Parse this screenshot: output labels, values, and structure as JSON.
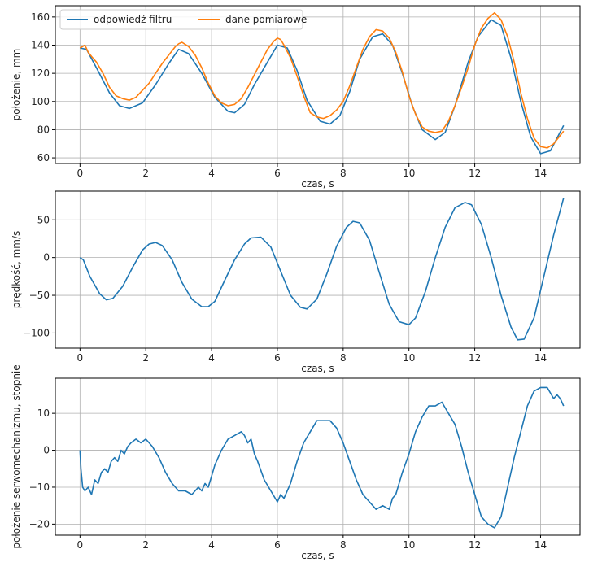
{
  "colors": {
    "filter": "#1f77b4",
    "measured": "#ff7f0e"
  },
  "chart_data": [
    {
      "type": "line",
      "xlabel": "czas, s",
      "ylabel": "położenie, mm",
      "xlim": [
        -0.75,
        15.2
      ],
      "ylim": [
        56,
        168
      ],
      "xticks": [
        0,
        2,
        4,
        6,
        8,
        10,
        12,
        14
      ],
      "yticks": [
        60,
        80,
        100,
        120,
        140,
        160
      ],
      "grid": true,
      "legend_position": "top-left",
      "series": [
        {
          "name": "odpowiedź filtru",
          "color_key": "filter",
          "x": [
            0,
            0.2,
            0.5,
            0.9,
            1.2,
            1.5,
            1.9,
            2.3,
            2.7,
            3.0,
            3.3,
            3.7,
            4.1,
            4.5,
            4.7,
            5.0,
            5.3,
            5.7,
            6.0,
            6.3,
            6.6,
            6.9,
            7.3,
            7.6,
            7.9,
            8.2,
            8.5,
            8.9,
            9.2,
            9.5,
            9.8,
            10.1,
            10.4,
            10.8,
            11.1,
            11.4,
            11.8,
            12.1,
            12.5,
            12.8,
            13.1,
            13.4,
            13.7,
            14.0,
            14.3,
            14.7
          ],
          "y": [
            138,
            137,
            124,
            106,
            97,
            95,
            99,
            112,
            127,
            137,
            134,
            120,
            103,
            93,
            92,
            98,
            112,
            128,
            140,
            138,
            122,
            101,
            86,
            84,
            90,
            107,
            130,
            146,
            148,
            140,
            120,
            97,
            80,
            73,
            78,
            97,
            128,
            146,
            158,
            154,
            131,
            100,
            75,
            63,
            65,
            83
          ]
        },
        {
          "name": "dane pomiarowe",
          "color_key": "measured",
          "x": [
            0,
            0.15,
            0.25,
            0.35,
            0.5,
            0.7,
            0.9,
            1.1,
            1.3,
            1.5,
            1.7,
            1.9,
            2.1,
            2.3,
            2.5,
            2.7,
            2.9,
            3.0,
            3.1,
            3.3,
            3.5,
            3.7,
            3.9,
            4.1,
            4.3,
            4.5,
            4.7,
            4.9,
            5.1,
            5.3,
            5.5,
            5.7,
            5.9,
            6.0,
            6.1,
            6.2,
            6.4,
            6.6,
            6.8,
            7.0,
            7.2,
            7.4,
            7.6,
            7.8,
            8.0,
            8.2,
            8.4,
            8.6,
            8.8,
            9.0,
            9.2,
            9.4,
            9.6,
            9.8,
            10.0,
            10.2,
            10.4,
            10.6,
            10.8,
            11.0,
            11.2,
            11.4,
            11.6,
            11.8,
            12.0,
            12.2,
            12.4,
            12.6,
            12.8,
            13.0,
            13.2,
            13.4,
            13.6,
            13.8,
            14.0,
            14.2,
            14.4,
            14.7
          ],
          "y": [
            138,
            140,
            135,
            132,
            128,
            120,
            110,
            104,
            102,
            101,
            103,
            108,
            113,
            120,
            127,
            133,
            139,
            141,
            142,
            139,
            133,
            124,
            113,
            104,
            99,
            97,
            98,
            102,
            110,
            119,
            128,
            137,
            143,
            145,
            144,
            140,
            131,
            118,
            104,
            92,
            89,
            88,
            90,
            94,
            100,
            111,
            124,
            137,
            146,
            151,
            150,
            145,
            135,
            121,
            104,
            91,
            82,
            79,
            78,
            79,
            86,
            97,
            110,
            124,
            140,
            152,
            159,
            163,
            158,
            146,
            128,
            106,
            88,
            74,
            68,
            67,
            70,
            79
          ]
        }
      ]
    },
    {
      "type": "line",
      "xlabel": "czas, s",
      "ylabel": "prędkość, mm/s",
      "xlim": [
        -0.75,
        15.2
      ],
      "ylim": [
        -120,
        88
      ],
      "xticks": [
        0,
        2,
        4,
        6,
        8,
        10,
        12,
        14
      ],
      "yticks": [
        -100,
        -50,
        0,
        50
      ],
      "grid": true,
      "series": [
        {
          "name": "prędkość",
          "color_key": "filter",
          "x": [
            0,
            0.1,
            0.3,
            0.6,
            0.8,
            1.0,
            1.3,
            1.6,
            1.9,
            2.1,
            2.3,
            2.5,
            2.8,
            3.1,
            3.4,
            3.7,
            3.9,
            4.1,
            4.4,
            4.7,
            5.0,
            5.2,
            5.5,
            5.8,
            6.1,
            6.4,
            6.7,
            6.9,
            7.2,
            7.5,
            7.8,
            8.1,
            8.3,
            8.5,
            8.8,
            9.1,
            9.4,
            9.7,
            10.0,
            10.2,
            10.5,
            10.8,
            11.1,
            11.4,
            11.7,
            11.9,
            12.2,
            12.5,
            12.8,
            13.1,
            13.3,
            13.5,
            13.8,
            14.1,
            14.4,
            14.7
          ],
          "y": [
            0,
            -3,
            -25,
            -48,
            -56,
            -54,
            -38,
            -13,
            10,
            18,
            20,
            16,
            -3,
            -33,
            -55,
            -65,
            -65,
            -58,
            -30,
            -3,
            18,
            26,
            27,
            14,
            -18,
            -50,
            -66,
            -68,
            -55,
            -22,
            15,
            40,
            48,
            46,
            23,
            -20,
            -62,
            -85,
            -89,
            -80,
            -45,
            0,
            40,
            66,
            73,
            70,
            44,
            0,
            -50,
            -92,
            -109,
            -108,
            -80,
            -25,
            30,
            79
          ]
        }
      ]
    },
    {
      "type": "line",
      "xlabel": "czas, s",
      "ylabel": "położenie serwomechanizmu, stopnie",
      "xlim": [
        -0.75,
        15.2
      ],
      "ylim": [
        -23,
        19.5
      ],
      "xticks": [
        0,
        2,
        4,
        6,
        8,
        10,
        12,
        14
      ],
      "yticks": [
        -20,
        -10,
        0,
        10
      ],
      "grid": true,
      "series": [
        {
          "name": "położenie serwomechanizmu",
          "color_key": "filter",
          "x": [
            0,
            0.03,
            0.08,
            0.15,
            0.25,
            0.35,
            0.45,
            0.55,
            0.65,
            0.75,
            0.85,
            0.95,
            1.05,
            1.15,
            1.25,
            1.35,
            1.45,
            1.55,
            1.7,
            1.85,
            2.0,
            2.2,
            2.4,
            2.6,
            2.8,
            3.0,
            3.2,
            3.4,
            3.6,
            3.7,
            3.8,
            3.9,
            4.0,
            4.1,
            4.3,
            4.5,
            4.7,
            4.9,
            5.0,
            5.1,
            5.2,
            5.3,
            5.4,
            5.6,
            5.8,
            6.0,
            6.1,
            6.2,
            6.4,
            6.6,
            6.8,
            7.0,
            7.2,
            7.4,
            7.6,
            7.8,
            8.0,
            8.2,
            8.4,
            8.6,
            8.8,
            9.0,
            9.2,
            9.4,
            9.5,
            9.6,
            9.8,
            10.0,
            10.2,
            10.4,
            10.6,
            10.8,
            11.0,
            11.2,
            11.4,
            11.6,
            11.8,
            12.0,
            12.2,
            12.4,
            12.6,
            12.8,
            13.0,
            13.2,
            13.4,
            13.6,
            13.8,
            14.0,
            14.2,
            14.4,
            14.5,
            14.6,
            14.7
          ],
          "y": [
            0,
            -5,
            -10,
            -11,
            -10,
            -12,
            -8,
            -9,
            -6,
            -5,
            -6,
            -3,
            -2,
            -3,
            0,
            -1,
            1,
            2,
            3,
            2,
            3,
            1,
            -2,
            -6,
            -9,
            -11,
            -11,
            -12,
            -10,
            -11,
            -9,
            -10,
            -7,
            -4,
            0,
            3,
            4,
            5,
            4,
            2,
            3,
            -1,
            -3,
            -8,
            -11,
            -14,
            -12,
            -13,
            -9,
            -3,
            2,
            5,
            8,
            8,
            8,
            6,
            2,
            -3,
            -8,
            -12,
            -14,
            -16,
            -15,
            -16,
            -13,
            -12,
            -6,
            -1,
            5,
            9,
            12,
            12,
            13,
            10,
            7,
            1,
            -6,
            -12,
            -18,
            -20,
            -21,
            -18,
            -10,
            -2,
            5,
            12,
            16,
            17,
            17,
            14,
            15,
            14,
            12
          ]
        }
      ]
    }
  ]
}
